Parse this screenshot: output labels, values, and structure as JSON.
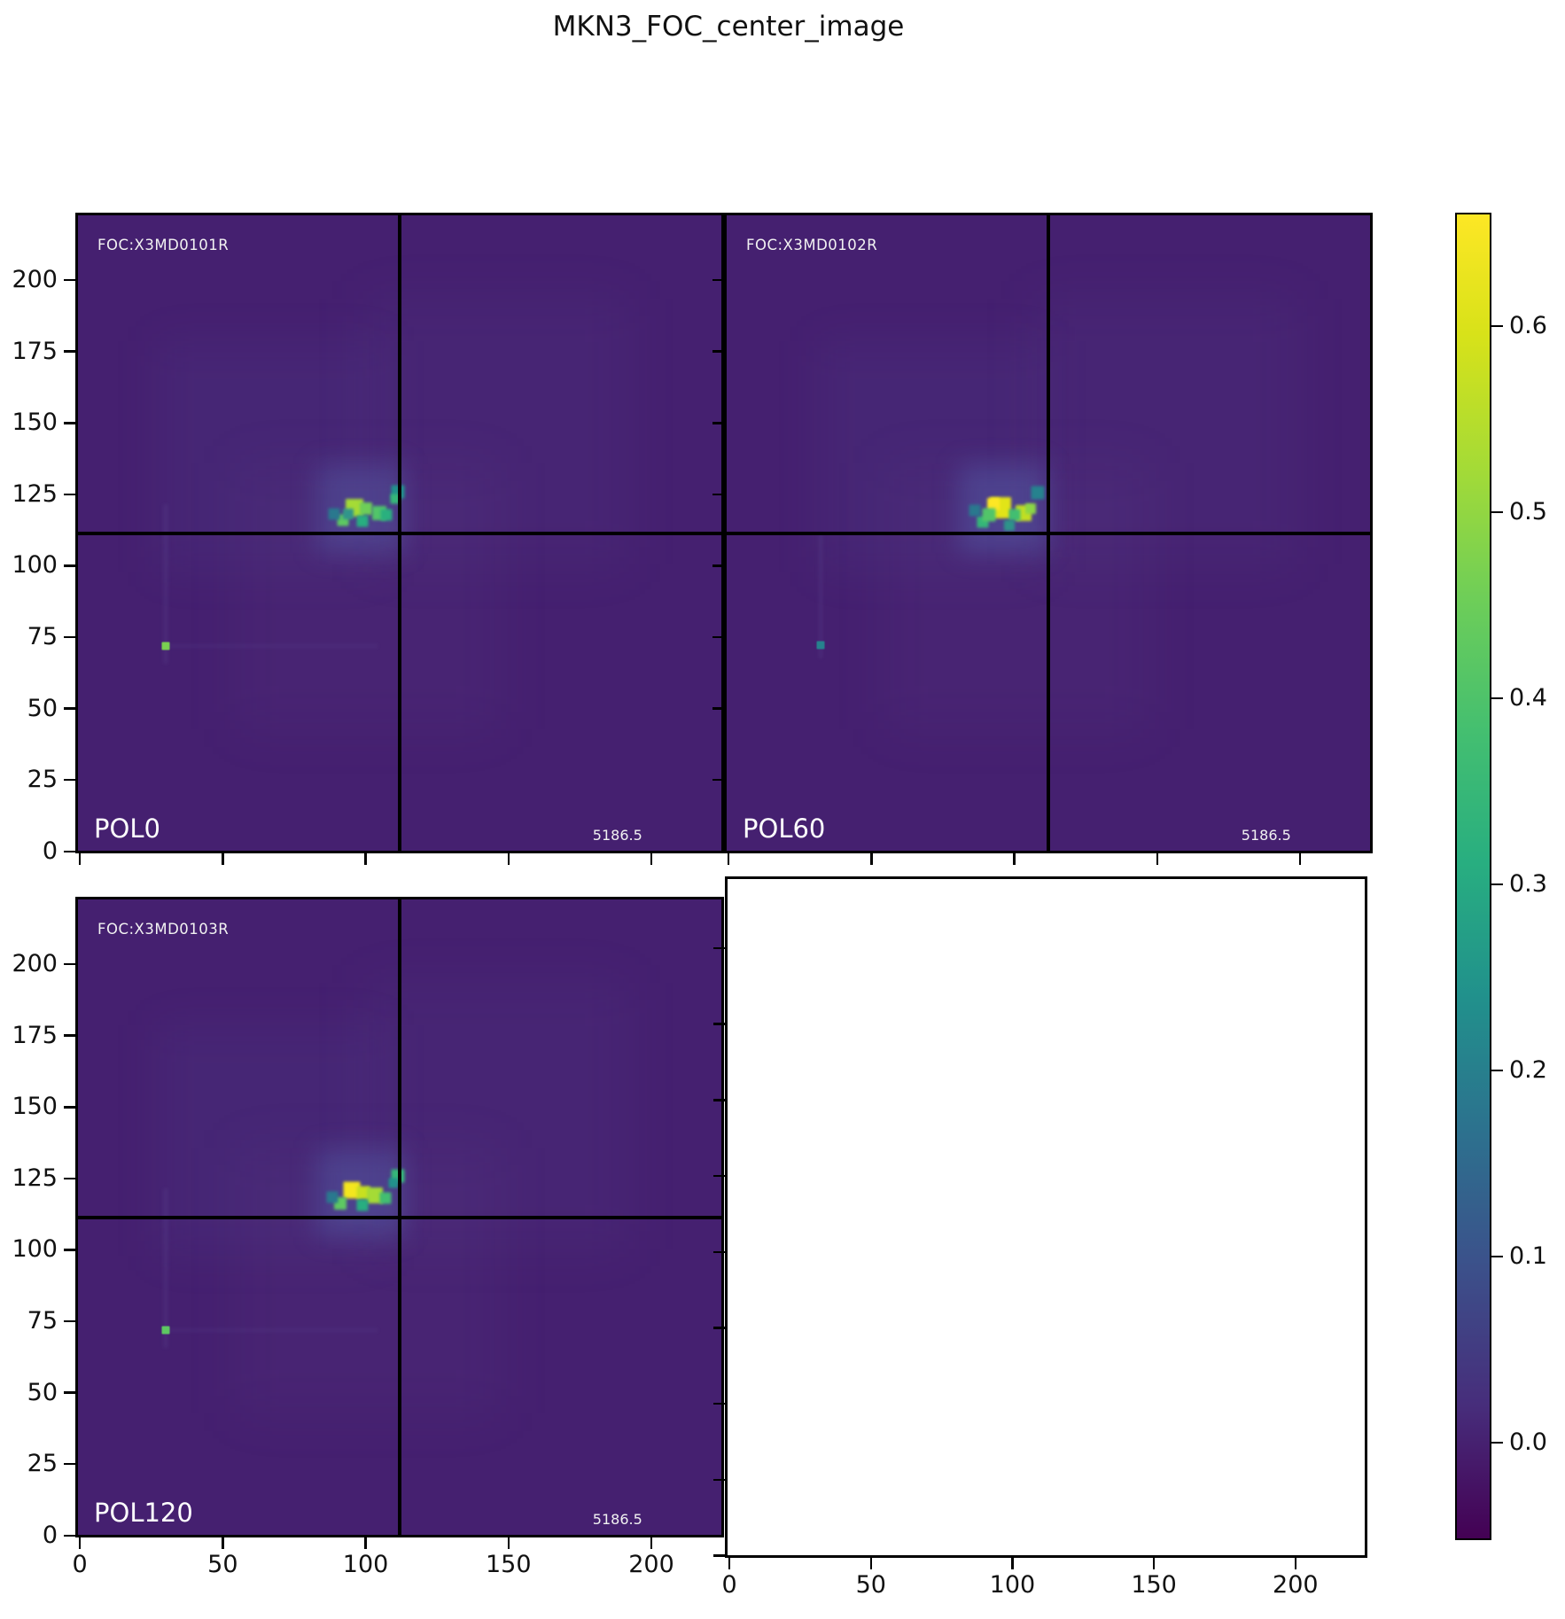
{
  "figure": {
    "title": "MKN3_FOC_center_image"
  },
  "chart_data": {
    "type": "heatmap",
    "title": "MKN3_FOC_center_image",
    "colormap": "viridis",
    "layout": "2x2 grid of polarization image panels, bottom-right panel empty, shared colorbar on the right",
    "x_ticks": [
      0,
      50,
      100,
      150,
      200
    ],
    "y_ticks": [
      0,
      25,
      50,
      75,
      100,
      125,
      150,
      175,
      200
    ],
    "x_range": [
      0,
      225
    ],
    "y_range": [
      0,
      224
    ],
    "grid": false,
    "crosshair_center": {
      "x": 112,
      "y": 112
    },
    "colorbar": {
      "orientation": "vertical",
      "position": "right",
      "ticks": [
        "0.0",
        "0.1",
        "0.2",
        "0.3",
        "0.4",
        "0.5",
        "0.6"
      ],
      "vmin": -0.05,
      "vmax": 0.66
    },
    "colors": {
      "panel_background": "#452070",
      "viridis_top": "#fde725",
      "viridis_bottom": "#440154",
      "crosshair": "#000000"
    },
    "panels": [
      {
        "position": "top-left",
        "empty": false,
        "pol_label": "POL0",
        "foc_label": "FOC:X3MD0101R",
        "value_label": "5186.5",
        "features": [
          {
            "x": 0.3,
            "y": 0.38,
            "s": 26,
            "c": "rgba(110,130,200,0.06)",
            "blur": 25
          },
          {
            "x": 0.65,
            "y": 0.34,
            "s": 30,
            "c": "rgba(110,130,200,0.05)",
            "blur": 30
          },
          {
            "x": 0.45,
            "y": 0.6,
            "s": 30,
            "c": "rgba(130,110,180,0.05)",
            "blur": 30
          },
          {
            "x": 0.137,
            "y": 0.58,
            "w": 0.4,
            "h": 18,
            "c": "rgba(120,120,190,0.14)",
            "blur": 2
          },
          {
            "x": 0.3,
            "y": 0.678,
            "w": 24,
            "h": 0.4,
            "c": "rgba(120,120,190,0.10)",
            "blur": 2
          },
          {
            "x": 0.44,
            "y": 0.462,
            "s": 10,
            "c": "rgba(90,130,200,0.25)",
            "blur": 14
          },
          {
            "x": 0.43,
            "y": 0.46,
            "s": 2.0,
            "c": "#a5db36"
          },
          {
            "x": 0.447,
            "y": 0.462,
            "s": 1.4,
            "c": "#6ece58"
          },
          {
            "x": 0.468,
            "y": 0.468,
            "s": 1.6,
            "c": "#52c569"
          },
          {
            "x": 0.48,
            "y": 0.472,
            "s": 1.3,
            "c": "#2ab07f"
          },
          {
            "x": 0.412,
            "y": 0.48,
            "s": 1.3,
            "c": "#5ec962"
          },
          {
            "x": 0.497,
            "y": 0.435,
            "s": 1.5,
            "c": "#21918c"
          },
          {
            "x": 0.493,
            "y": 0.446,
            "s": 1.1,
            "c": "#35b779"
          },
          {
            "x": 0.398,
            "y": 0.47,
            "s": 1.3,
            "c": "#2a788e"
          },
          {
            "x": 0.442,
            "y": 0.481,
            "s": 1.3,
            "c": "#28ae80"
          },
          {
            "x": 0.42,
            "y": 0.47,
            "s": 1.2,
            "c": "#31958b"
          },
          {
            "x": 0.137,
            "y": 0.678,
            "s": 0.9,
            "c": "#7ad151",
            "blur": 0.5
          }
        ]
      },
      {
        "position": "top-right",
        "empty": false,
        "pol_label": "POL60",
        "foc_label": "FOC:X3MD0102R",
        "value_label": "5186.5",
        "features": [
          {
            "x": 0.32,
            "y": 0.38,
            "s": 26,
            "c": "rgba(110,130,200,0.06)",
            "blur": 25
          },
          {
            "x": 0.68,
            "y": 0.34,
            "s": 30,
            "c": "rgba(110,130,200,0.05)",
            "blur": 30
          },
          {
            "x": 0.45,
            "y": 0.6,
            "s": 30,
            "c": "rgba(130,110,180,0.05)",
            "blur": 30
          },
          {
            "x": 0.146,
            "y": 0.6,
            "w": 0.4,
            "h": 14,
            "c": "rgba(120,120,190,0.12)",
            "blur": 2
          },
          {
            "x": 0.43,
            "y": 0.462,
            "s": 10,
            "c": "rgba(90,130,200,0.28)",
            "blur": 14
          },
          {
            "x": 0.425,
            "y": 0.46,
            "s": 2.4,
            "c": "#e2e418"
          },
          {
            "x": 0.415,
            "y": 0.455,
            "s": 1.4,
            "c": "#fde725"
          },
          {
            "x": 0.462,
            "y": 0.468,
            "s": 1.8,
            "c": "#c2df23"
          },
          {
            "x": 0.472,
            "y": 0.462,
            "s": 1.2,
            "c": "#8bd646"
          },
          {
            "x": 0.484,
            "y": 0.436,
            "s": 1.5,
            "c": "#26828e"
          },
          {
            "x": 0.448,
            "y": 0.471,
            "s": 1.3,
            "c": "#42be71"
          },
          {
            "x": 0.398,
            "y": 0.482,
            "s": 1.3,
            "c": "#35b779"
          },
          {
            "x": 0.385,
            "y": 0.465,
            "s": 1.3,
            "c": "#2a788e"
          },
          {
            "x": 0.44,
            "y": 0.488,
            "s": 1.2,
            "c": "#2e938a"
          },
          {
            "x": 0.408,
            "y": 0.472,
            "s": 1.5,
            "c": "#52c569"
          },
          {
            "x": 0.146,
            "y": 0.676,
            "s": 0.9,
            "c": "#26828e",
            "blur": 0.5
          }
        ]
      },
      {
        "position": "bottom-left",
        "empty": false,
        "pol_label": "POL120",
        "foc_label": "FOC:X3MD0103R",
        "value_label": "5186.5",
        "features": [
          {
            "x": 0.3,
            "y": 0.38,
            "s": 26,
            "c": "rgba(110,130,200,0.06)",
            "blur": 25
          },
          {
            "x": 0.65,
            "y": 0.34,
            "s": 30,
            "c": "rgba(110,130,200,0.05)",
            "blur": 30
          },
          {
            "x": 0.45,
            "y": 0.6,
            "s": 30,
            "c": "rgba(130,110,180,0.05)",
            "blur": 30
          },
          {
            "x": 0.137,
            "y": 0.58,
            "w": 0.4,
            "h": 18,
            "c": "rgba(120,120,190,0.14)",
            "blur": 2
          },
          {
            "x": 0.3,
            "y": 0.678,
            "w": 24,
            "h": 0.4,
            "c": "rgba(120,120,190,0.10)",
            "blur": 2
          },
          {
            "x": 0.44,
            "y": 0.462,
            "s": 10,
            "c": "rgba(90,130,200,0.26)",
            "blur": 14
          },
          {
            "x": 0.425,
            "y": 0.458,
            "s": 1.9,
            "c": "#f4e61e"
          },
          {
            "x": 0.443,
            "y": 0.462,
            "s": 1.5,
            "c": "#c8e020"
          },
          {
            "x": 0.462,
            "y": 0.466,
            "s": 1.8,
            "c": "#a5db36"
          },
          {
            "x": 0.478,
            "y": 0.47,
            "s": 1.3,
            "c": "#42be71"
          },
          {
            "x": 0.497,
            "y": 0.435,
            "s": 1.5,
            "c": "#35b779"
          },
          {
            "x": 0.408,
            "y": 0.478,
            "s": 1.4,
            "c": "#5ec962"
          },
          {
            "x": 0.395,
            "y": 0.468,
            "s": 1.3,
            "c": "#2a788e"
          },
          {
            "x": 0.442,
            "y": 0.481,
            "s": 1.3,
            "c": "#28ae80"
          },
          {
            "x": 0.49,
            "y": 0.446,
            "s": 1.1,
            "c": "#21918c"
          },
          {
            "x": 0.137,
            "y": 0.678,
            "s": 0.9,
            "c": "#5ec962",
            "blur": 0.5
          }
        ]
      },
      {
        "position": "bottom-right",
        "empty": true
      }
    ]
  }
}
